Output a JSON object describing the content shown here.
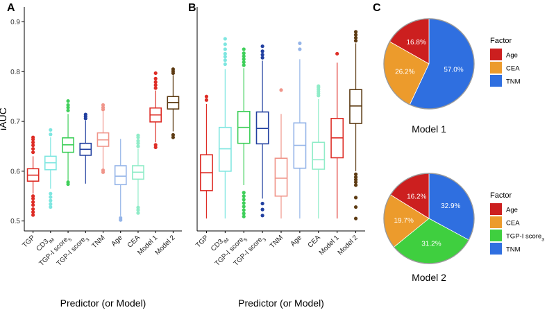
{
  "chart_data": [
    {
      "type": "boxplot",
      "panel_label": "A",
      "title": "",
      "ylabel": "iAUC",
      "xlabel": "Predictor (or Model)",
      "ylim": [
        0.48,
        0.93
      ],
      "yticks": [
        0.5,
        0.6,
        0.7,
        0.8,
        0.9
      ],
      "ytick_labels": [
        "0.5",
        "0.6",
        "0.7",
        "0.8",
        "0.9"
      ],
      "categories": [
        {
          "label": "TGP",
          "sub": "",
          "color": "#de2d26",
          "stats": {
            "min": 0.555,
            "q1": 0.58,
            "median": 0.592,
            "q3": 0.605,
            "max": 0.63
          },
          "outliers": [
            0.512,
            0.518,
            0.524,
            0.532,
            0.538,
            0.545,
            0.55,
            0.638,
            0.645,
            0.652,
            0.658,
            0.664,
            0.668
          ]
        },
        {
          "label": "CD3",
          "sub": "IM",
          "color": "#7ee6e0",
          "stats": {
            "min": 0.565,
            "q1": 0.603,
            "median": 0.617,
            "q3": 0.63,
            "max": 0.668
          },
          "outliers": [
            0.528,
            0.534,
            0.541,
            0.548,
            0.555,
            0.674,
            0.683
          ]
        },
        {
          "label": "TGP-I score",
          "sub": "5",
          "color": "#3fcf5a",
          "stats": {
            "min": 0.582,
            "q1": 0.638,
            "median": 0.653,
            "q3": 0.667,
            "max": 0.715
          },
          "outliers": [
            0.574,
            0.578,
            0.722,
            0.728,
            0.733,
            0.741
          ]
        },
        {
          "label": "TGP-I score",
          "sub": "3",
          "color": "#2240a0",
          "stats": {
            "min": 0.575,
            "q1": 0.632,
            "median": 0.644,
            "q3": 0.656,
            "max": 0.702
          },
          "outliers": [
            0.706,
            0.71,
            0.714
          ]
        },
        {
          "label": "TNM",
          "sub": "",
          "color": "#f0958a",
          "stats": {
            "min": 0.605,
            "q1": 0.65,
            "median": 0.663,
            "q3": 0.677,
            "max": 0.72
          },
          "outliers": [
            0.598,
            0.602,
            0.724,
            0.728,
            0.733
          ]
        },
        {
          "label": "Age",
          "sub": "",
          "color": "#94b4e8",
          "stats": {
            "min": 0.51,
            "q1": 0.573,
            "median": 0.59,
            "q3": 0.611,
            "max": 0.665
          },
          "outliers": [
            0.502,
            0.506
          ]
        },
        {
          "label": "CEA",
          "sub": "",
          "color": "#90ecc8",
          "stats": {
            "min": 0.53,
            "q1": 0.584,
            "median": 0.598,
            "q3": 0.611,
            "max": 0.645
          },
          "outliers": [
            0.516,
            0.522,
            0.527,
            0.65,
            0.656,
            0.661,
            0.668,
            0.672
          ]
        },
        {
          "label": "Model 1",
          "sub": "",
          "color": "#de2d26",
          "stats": {
            "min": 0.658,
            "q1": 0.699,
            "median": 0.713,
            "q3": 0.727,
            "max": 0.762
          },
          "outliers": [
            0.648,
            0.653,
            0.767,
            0.773,
            0.779,
            0.786,
            0.797
          ]
        },
        {
          "label": "Model 2",
          "sub": "",
          "color": "#5c3a12",
          "stats": {
            "min": 0.68,
            "q1": 0.725,
            "median": 0.738,
            "q3": 0.75,
            "max": 0.793
          },
          "outliers": [
            0.668,
            0.673,
            0.797,
            0.801,
            0.805
          ]
        }
      ]
    },
    {
      "type": "boxplot",
      "panel_label": "B",
      "title": "",
      "ylabel": "",
      "xlabel": "Predictor (or Model)",
      "ylim": [
        0.48,
        0.93
      ],
      "categories": [
        {
          "label": "TGP",
          "sub": "",
          "color": "#de2d26",
          "stats": {
            "min": 0.505,
            "q1": 0.561,
            "median": 0.597,
            "q3": 0.633,
            "max": 0.735
          },
          "outliers": [
            0.743,
            0.75
          ]
        },
        {
          "label": "CD3",
          "sub": "IM",
          "color": "#7ee6e0",
          "stats": {
            "min": 0.505,
            "q1": 0.6,
            "median": 0.645,
            "q3": 0.688,
            "max": 0.805
          },
          "outliers": [
            0.815,
            0.823,
            0.83,
            0.836,
            0.845,
            0.855,
            0.866
          ]
        },
        {
          "label": "TGP-I score",
          "sub": "5",
          "color": "#3fcf5a",
          "stats": {
            "min": 0.572,
            "q1": 0.656,
            "median": 0.688,
            "q3": 0.72,
            "max": 0.807
          },
          "outliers": [
            0.509,
            0.515,
            0.522,
            0.529,
            0.536,
            0.543,
            0.55,
            0.557,
            0.813,
            0.819,
            0.825,
            0.831,
            0.837,
            0.845
          ]
        },
        {
          "label": "TGP-I score",
          "sub": "3",
          "color": "#2240a0",
          "stats": {
            "min": 0.545,
            "q1": 0.655,
            "median": 0.686,
            "q3": 0.719,
            "max": 0.822
          },
          "outliers": [
            0.511,
            0.523,
            0.535,
            0.828,
            0.834,
            0.841,
            0.851
          ]
        },
        {
          "label": "TNM",
          "sub": "",
          "color": "#f0958a",
          "stats": {
            "min": 0.505,
            "q1": 0.55,
            "median": 0.586,
            "q3": 0.626,
            "max": 0.715
          },
          "outliers": [
            0.763
          ]
        },
        {
          "label": "Age",
          "sub": "",
          "color": "#94b4e8",
          "stats": {
            "min": 0.505,
            "q1": 0.606,
            "median": 0.652,
            "q3": 0.697,
            "max": 0.825
          },
          "outliers": [
            0.845,
            0.857
          ]
        },
        {
          "label": "CEA",
          "sub": "",
          "color": "#90ecc8",
          "stats": {
            "min": 0.505,
            "q1": 0.604,
            "median": 0.623,
            "q3": 0.658,
            "max": 0.745
          },
          "outliers": [
            0.752,
            0.756,
            0.76,
            0.764,
            0.768,
            0.771
          ]
        },
        {
          "label": "Model 1",
          "sub": "",
          "color": "#de2d26",
          "stats": {
            "min": 0.505,
            "q1": 0.627,
            "median": 0.667,
            "q3": 0.706,
            "max": 0.818
          },
          "outliers": [
            0.836
          ]
        },
        {
          "label": "Model 2",
          "sub": "",
          "color": "#5c3a12",
          "stats": {
            "min": 0.6,
            "q1": 0.696,
            "median": 0.731,
            "q3": 0.764,
            "max": 0.857
          },
          "outliers": [
            0.505,
            0.528,
            0.547,
            0.572,
            0.578,
            0.583,
            0.588,
            0.594,
            0.862,
            0.868,
            0.874,
            0.88
          ]
        }
      ]
    },
    {
      "type": "pie",
      "panel_label": "C",
      "title": "Model 1",
      "legend_title": "Factor",
      "slices": [
        {
          "label": "Age",
          "value": 16.8,
          "text": "16.8%",
          "color": "#cc1f1f"
        },
        {
          "label": "CEA",
          "value": 26.2,
          "text": "26.2%",
          "color": "#ec9b2c"
        },
        {
          "label": "TNM",
          "value": 57.0,
          "text": "57.0%",
          "color": "#2f6fe0"
        }
      ]
    },
    {
      "type": "pie",
      "panel_label": "",
      "title": "Model 2",
      "legend_title": "Factor",
      "slices": [
        {
          "label": "Age",
          "value": 16.2,
          "text": "16.2%",
          "color": "#cc1f1f"
        },
        {
          "label": "CEA",
          "value": 19.7,
          "text": "19.7%",
          "color": "#ec9b2c"
        },
        {
          "label": "TGP-I score",
          "sub": "3",
          "value": 31.2,
          "text": "31.2%",
          "color": "#3fcf3f"
        },
        {
          "label": "TNM",
          "value": 32.9,
          "text": "32.9%",
          "color": "#2f6fe0"
        }
      ]
    }
  ]
}
